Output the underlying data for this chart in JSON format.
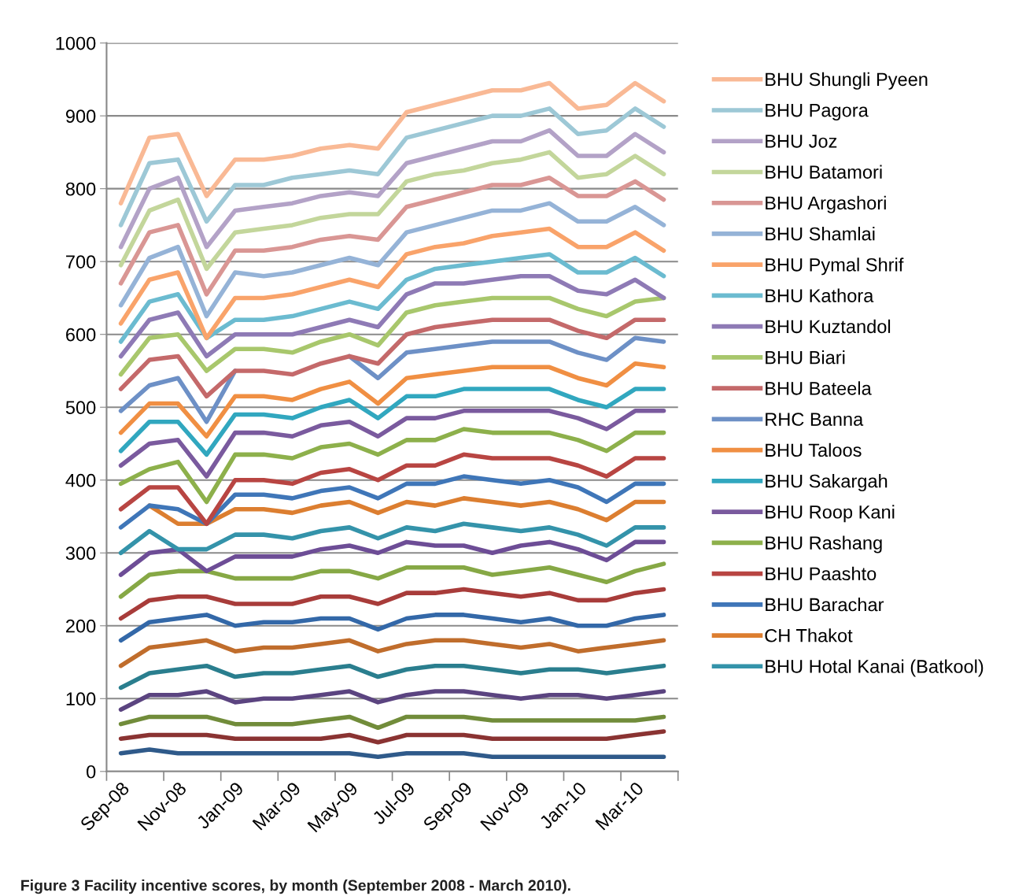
{
  "chart_data": {
    "type": "line",
    "categories": [
      "Sep-08",
      null,
      "Nov-08",
      null,
      "Jan-09",
      null,
      "Mar-09",
      null,
      "May-09",
      null,
      "Jul-09",
      null,
      "Sep-09",
      null,
      "Nov-09",
      null,
      "Jan-10",
      null,
      "Mar-10",
      null
    ],
    "ylim": [
      0,
      1000
    ],
    "yticks": [
      0,
      100,
      200,
      300,
      400,
      500,
      600,
      700,
      800,
      900,
      1000
    ],
    "grid": "y",
    "legend": "right",
    "marker": "none",
    "line_style": "solid",
    "annotations": [
      "Figure 3 Facility incentive scores, by month (September 2008 - March 2010)."
    ],
    "series": [
      {
        "name": "BHU Shungli Pyeen",
        "color": "#f9b995",
        "values": [
          780,
          870,
          875,
          790,
          840,
          840,
          845,
          855,
          860,
          855,
          905,
          915,
          925,
          935,
          935,
          945,
          910,
          915,
          945,
          920
        ]
      },
      {
        "name": "BHU Pagora",
        "color": "#9dc8d6",
        "values": [
          750,
          835,
          840,
          755,
          805,
          805,
          815,
          820,
          825,
          820,
          870,
          880,
          890,
          900,
          900,
          910,
          875,
          880,
          910,
          885
        ]
      },
      {
        "name": "BHU Joz",
        "color": "#b3a2c7",
        "values": [
          720,
          800,
          815,
          720,
          770,
          775,
          780,
          790,
          795,
          790,
          835,
          845,
          855,
          865,
          865,
          880,
          845,
          845,
          875,
          850
        ]
      },
      {
        "name": "BHU Batamori",
        "color": "#c3d69b",
        "values": [
          695,
          770,
          785,
          690,
          740,
          745,
          750,
          760,
          765,
          765,
          810,
          820,
          825,
          835,
          840,
          850,
          815,
          820,
          845,
          820
        ]
      },
      {
        "name": "BHU Argashori",
        "color": "#d99694",
        "values": [
          670,
          740,
          750,
          655,
          715,
          715,
          720,
          730,
          735,
          730,
          775,
          785,
          795,
          805,
          805,
          815,
          790,
          790,
          810,
          785
        ]
      },
      {
        "name": "BHU Shamlai",
        "color": "#95b3d7",
        "values": [
          640,
          705,
          720,
          625,
          685,
          680,
          685,
          695,
          705,
          695,
          740,
          750,
          760,
          770,
          770,
          780,
          755,
          755,
          775,
          750
        ]
      },
      {
        "name": "BHU Pymal Shrif",
        "color": "#f9a36a",
        "values": [
          615,
          675,
          685,
          595,
          650,
          650,
          655,
          665,
          675,
          665,
          710,
          720,
          725,
          735,
          740,
          745,
          720,
          720,
          740,
          715
        ]
      },
      {
        "name": "BHU Kathora",
        "color": "#6bbbd0",
        "values": [
          590,
          645,
          655,
          595,
          620,
          620,
          625,
          635,
          645,
          635,
          675,
          690,
          695,
          700,
          705,
          710,
          685,
          685,
          705,
          680
        ]
      },
      {
        "name": "BHU Kuztandol",
        "color": "#8e7ab5",
        "values": [
          570,
          620,
          630,
          570,
          600,
          600,
          600,
          610,
          620,
          610,
          655,
          670,
          670,
          675,
          680,
          680,
          660,
          655,
          675,
          650
        ]
      },
      {
        "name": "BHU Biari",
        "color": "#a8c76c",
        "values": [
          545,
          595,
          600,
          550,
          580,
          580,
          575,
          590,
          600,
          585,
          630,
          640,
          645,
          650,
          650,
          650,
          635,
          625,
          645,
          650
        ]
      },
      {
        "name": "BHU Bateela",
        "color": "#c4696a",
        "values": [
          525,
          565,
          570,
          515,
          550,
          550,
          545,
          560,
          570,
          560,
          600,
          610,
          615,
          620,
          620,
          620,
          605,
          595,
          620,
          620
        ]
      },
      {
        "name": "RHC Banna",
        "color": "#6d90c6",
        "values": [
          495,
          530,
          540,
          480,
          550,
          null,
          null,
          null,
          570,
          540,
          575,
          580,
          585,
          590,
          590,
          590,
          575,
          565,
          595,
          590
        ]
      },
      {
        "name": "BHU Taloos",
        "color": "#f08f43",
        "values": [
          465,
          505,
          505,
          460,
          515,
          515,
          510,
          525,
          535,
          505,
          540,
          545,
          550,
          555,
          555,
          555,
          540,
          530,
          560,
          555
        ]
      },
      {
        "name": "BHU Sakargah",
        "color": "#31a7bf",
        "values": [
          440,
          480,
          480,
          435,
          490,
          490,
          485,
          500,
          510,
          485,
          515,
          515,
          525,
          525,
          525,
          525,
          510,
          500,
          525,
          525
        ]
      },
      {
        "name": "BHU Roop Kani",
        "color": "#7a5a9e",
        "values": [
          420,
          450,
          455,
          405,
          465,
          465,
          460,
          475,
          480,
          460,
          485,
          485,
          495,
          495,
          495,
          495,
          485,
          470,
          495,
          495
        ]
      },
      {
        "name": "BHU Rashang",
        "color": "#8db04b",
        "values": [
          395,
          415,
          425,
          370,
          435,
          435,
          430,
          445,
          450,
          435,
          455,
          455,
          470,
          465,
          465,
          465,
          455,
          440,
          465,
          465
        ]
      },
      {
        "name": "BHU Paashto",
        "color": "#b84542",
        "values": [
          360,
          390,
          390,
          340,
          400,
          400,
          395,
          410,
          415,
          400,
          420,
          420,
          435,
          430,
          430,
          430,
          420,
          405,
          430,
          430
        ]
      },
      {
        "name": "BHU Barachar",
        "color": "#3f76b8",
        "values": [
          335,
          365,
          360,
          340,
          380,
          380,
          375,
          385,
          390,
          375,
          395,
          395,
          405,
          400,
          395,
          400,
          390,
          370,
          395,
          395
        ]
      },
      {
        "name": "CH Thakot",
        "color": "#dc7e30",
        "values": [
          null,
          365,
          340,
          340,
          360,
          360,
          355,
          365,
          370,
          355,
          370,
          365,
          375,
          370,
          365,
          370,
          360,
          345,
          370,
          370
        ]
      },
      {
        "name": "BHU Hotal Kanai (Batkool)",
        "color": "#3493aa",
        "values": [
          300,
          330,
          305,
          305,
          325,
          325,
          320,
          330,
          335,
          320,
          335,
          330,
          340,
          335,
          330,
          335,
          325,
          310,
          335,
          335
        ]
      },
      {
        "color": "#6d4d96",
        "values": [
          270,
          300,
          305,
          275,
          295,
          295,
          295,
          305,
          310,
          300,
          315,
          310,
          310,
          300,
          310,
          315,
          305,
          290,
          315,
          315
        ]
      },
      {
        "color": "#86a845",
        "values": [
          240,
          270,
          275,
          275,
          265,
          265,
          265,
          275,
          275,
          265,
          280,
          280,
          280,
          270,
          275,
          280,
          270,
          260,
          275,
          285
        ]
      },
      {
        "color": "#a83c3a",
        "values": [
          210,
          235,
          240,
          240,
          230,
          230,
          230,
          240,
          240,
          230,
          245,
          245,
          250,
          245,
          240,
          245,
          235,
          235,
          245,
          250
        ]
      },
      {
        "color": "#3368a8",
        "values": [
          180,
          205,
          210,
          215,
          200,
          205,
          205,
          210,
          210,
          195,
          210,
          215,
          215,
          210,
          205,
          210,
          200,
          200,
          210,
          215
        ]
      },
      {
        "color": "#c06d2c",
        "values": [
          145,
          170,
          175,
          180,
          165,
          170,
          170,
          175,
          180,
          165,
          175,
          180,
          180,
          175,
          170,
          175,
          165,
          170,
          175,
          180
        ]
      },
      {
        "color": "#2a7e8e",
        "values": [
          115,
          135,
          140,
          145,
          130,
          135,
          135,
          140,
          145,
          130,
          140,
          145,
          145,
          140,
          135,
          140,
          140,
          135,
          140,
          145
        ]
      },
      {
        "color": "#5b4480",
        "values": [
          85,
          105,
          105,
          110,
          95,
          100,
          100,
          105,
          110,
          95,
          105,
          110,
          110,
          105,
          100,
          105,
          105,
          100,
          105,
          110
        ]
      },
      {
        "color": "#718c3a",
        "values": [
          65,
          75,
          75,
          75,
          65,
          65,
          65,
          70,
          75,
          60,
          75,
          75,
          75,
          70,
          70,
          70,
          70,
          70,
          70,
          75
        ]
      },
      {
        "color": "#8a3332",
        "values": [
          45,
          50,
          50,
          50,
          45,
          45,
          45,
          45,
          50,
          40,
          50,
          50,
          50,
          45,
          45,
          45,
          45,
          45,
          50,
          55
        ]
      },
      {
        "color": "#2f5a8a",
        "values": [
          25,
          30,
          25,
          25,
          25,
          25,
          25,
          25,
          25,
          20,
          25,
          25,
          25,
          20,
          20,
          20,
          20,
          20,
          20,
          20
        ]
      }
    ]
  }
}
